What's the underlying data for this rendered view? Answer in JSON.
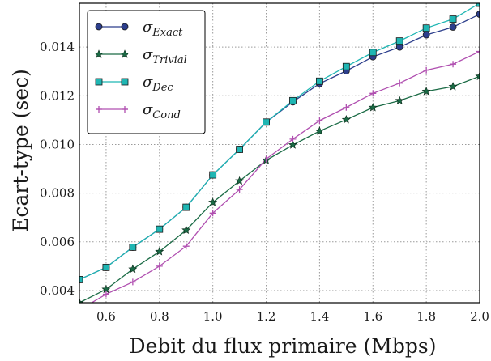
{
  "chart_data": {
    "type": "line",
    "xlabel": "Debit du flux primaire (Mbps)",
    "ylabel": "Ecart-type (sec)",
    "xlim": [
      0.5,
      2.0
    ],
    "ylim": [
      0.0035,
      0.0158
    ],
    "xticks": [
      "0.6",
      "0.8",
      "1.0",
      "1.2",
      "1.4",
      "1.6",
      "1.8",
      "2.0"
    ],
    "yticks": [
      "0.004",
      "0.006",
      "0.008",
      "0.010",
      "0.012",
      "0.014"
    ],
    "grid": true,
    "legend_position": "top-left",
    "x": [
      0.5,
      0.6,
      0.7,
      0.8,
      0.9,
      1.0,
      1.1,
      1.2,
      1.3,
      1.4,
      1.5,
      1.6,
      1.7,
      1.8,
      1.9,
      2.0
    ],
    "series": [
      {
        "name": "σ",
        "subscript": "Exact",
        "color": "#2c3e8c",
        "marker": "circle",
        "values": [
          0.00445,
          0.00495,
          0.00578,
          0.00652,
          0.00742,
          0.00875,
          0.0098,
          0.01092,
          0.01175,
          0.0125,
          0.01302,
          0.0136,
          0.014,
          0.0145,
          0.01482,
          0.01535
        ]
      },
      {
        "name": "σ",
        "subscript": "Trivial",
        "color": "#1a6b45",
        "marker": "star",
        "values": [
          0.0035,
          0.00405,
          0.00488,
          0.0056,
          0.00648,
          0.00762,
          0.0085,
          0.00935,
          0.00998,
          0.01055,
          0.01102,
          0.01152,
          0.0118,
          0.01218,
          0.01238,
          0.0128
        ]
      },
      {
        "name": "σ",
        "subscript": "Dec",
        "color": "#1fb6b3",
        "marker": "square",
        "values": [
          0.00445,
          0.00495,
          0.00578,
          0.00652,
          0.00742,
          0.00875,
          0.0098,
          0.01092,
          0.0118,
          0.0126,
          0.0132,
          0.01378,
          0.01425,
          0.01478,
          0.01515,
          0.0158
        ]
      },
      {
        "name": "σ",
        "subscript": "Cond",
        "color": "#b04fb0",
        "marker": "plus",
        "values": [
          0.0032,
          0.00385,
          0.00435,
          0.005,
          0.00582,
          0.00718,
          0.00815,
          0.0094,
          0.01022,
          0.01098,
          0.01152,
          0.0121,
          0.01252,
          0.01305,
          0.0133,
          0.01382
        ]
      }
    ]
  }
}
